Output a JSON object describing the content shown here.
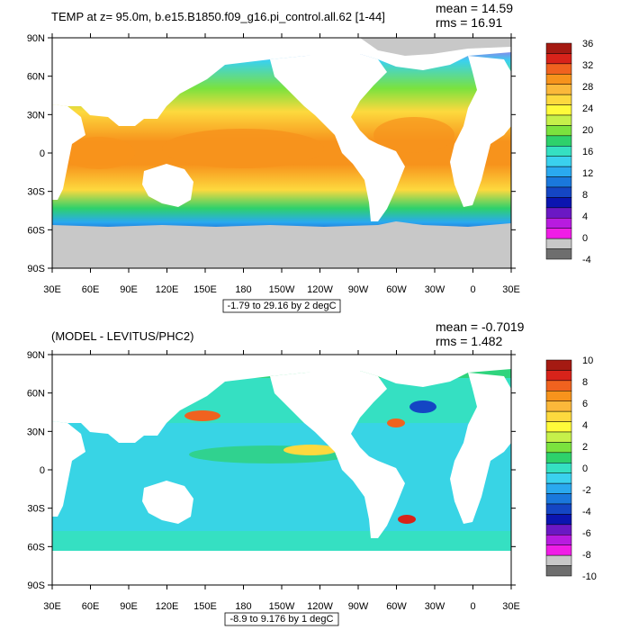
{
  "panels": [
    {
      "title": "TEMP at z=  95.0m, b.e15.B1850.f09_g16.pi_control.all.62 [1-44]",
      "mean": "mean = 14.59",
      "rms": "rms = 16.91",
      "range_note": "-1.79 to 29.16 by 2 degC",
      "lat_labels": [
        "90N",
        "60N",
        "30N",
        "0",
        "30S",
        "60S",
        "90S"
      ],
      "lon_labels": [
        "30E",
        "60E",
        "90E",
        "120E",
        "150E",
        "180",
        "150W",
        "120W",
        "90W",
        "60W",
        "30W",
        "0",
        "30E"
      ],
      "colorbar_labels": [
        "36",
        "32",
        "28",
        "24",
        "20",
        "16",
        "12",
        "8",
        "4",
        "0",
        "-4"
      ],
      "colorbar_colors": [
        "#a51a12",
        "#d8231a",
        "#f0621f",
        "#f7931c",
        "#fbb83a",
        "#fdd93e",
        "#fffb3a",
        "#c6f04a",
        "#7be23e",
        "#2ed16b",
        "#35e0c2",
        "#3ad1ee",
        "#2aa9ef",
        "#1a78dc",
        "#1446c4",
        "#0b15b0",
        "#6a18c4",
        "#b81be0",
        "#f01de6",
        "#c8c8c8",
        "#6e6e6e"
      ]
    },
    {
      "title": "(MODEL - LEVITUS/PHC2)",
      "mean": "mean = -0.7019",
      "rms": "rms = 1.482",
      "range_note": "-8.9 to 9.176 by 1 degC",
      "lat_labels": [
        "90N",
        "60N",
        "30N",
        "0",
        "30S",
        "60S",
        "90S"
      ],
      "lon_labels": [
        "30E",
        "60E",
        "90E",
        "120E",
        "150E",
        "180",
        "150W",
        "120W",
        "90W",
        "60W",
        "30W",
        "0",
        "30E"
      ],
      "colorbar_labels": [
        "10",
        "8",
        "6",
        "4",
        "2",
        "0",
        "-2",
        "-4",
        "-6",
        "-8",
        "-10"
      ],
      "colorbar_colors": [
        "#a51a12",
        "#d8231a",
        "#f0621f",
        "#f7931c",
        "#fbb83a",
        "#fdd93e",
        "#fffb3a",
        "#c6f04a",
        "#7be23e",
        "#2ed16b",
        "#35e0c2",
        "#3ad1ee",
        "#2aa9ef",
        "#1a78dc",
        "#1446c4",
        "#0b15b0",
        "#6a18c4",
        "#b81be0",
        "#f01de6",
        "#c8c8c8",
        "#6e6e6e"
      ]
    }
  ]
}
